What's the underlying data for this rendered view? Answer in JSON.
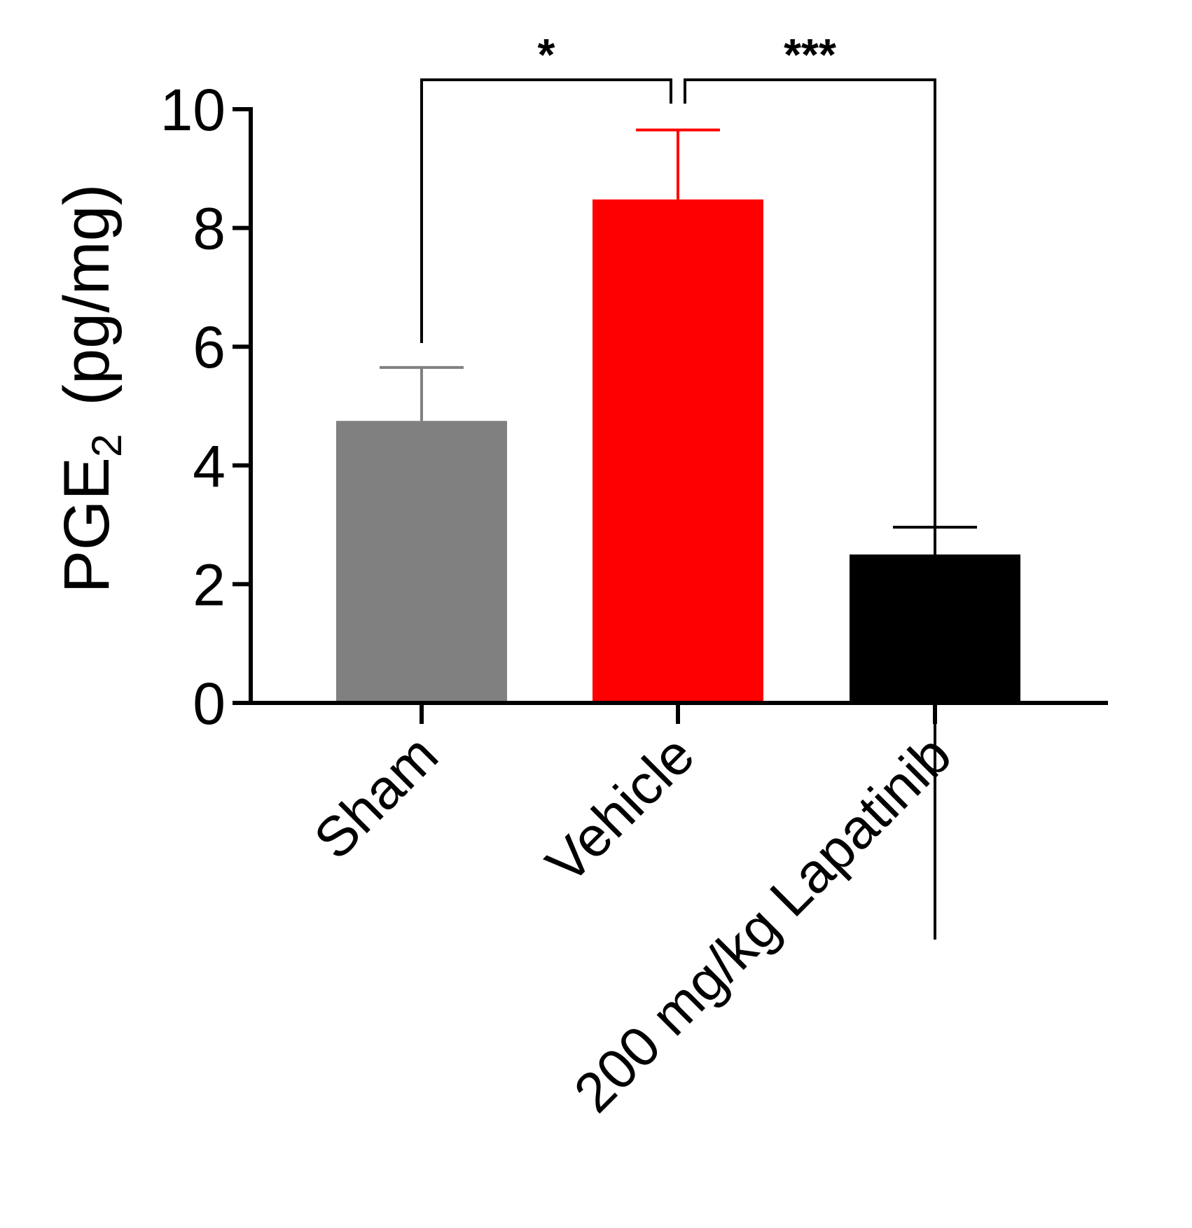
{
  "chart_data": {
    "type": "bar",
    "categories": [
      "Sham",
      "Vehicle",
      "200 mg/kg Lapatinib"
    ],
    "values": [
      4.75,
      8.48,
      2.5
    ],
    "errors": [
      0.9,
      1.17,
      0.46
    ],
    "colors": [
      "#808080",
      "#ff0000",
      "#000000"
    ],
    "ylabel_main": "PGE",
    "ylabel_sub": "2",
    "ylabel_unit": "(pg/mg)",
    "ylim": [
      0,
      10
    ],
    "yticks": [
      0,
      2,
      4,
      6,
      8,
      10
    ],
    "ytick_labels": [
      "0",
      "2",
      "4",
      "6",
      "8",
      "10"
    ],
    "significance": [
      {
        "from": 0,
        "to": 1,
        "label": "*"
      },
      {
        "from": 1,
        "to": 2,
        "label": "***"
      }
    ],
    "grid": false,
    "legend": "none"
  }
}
